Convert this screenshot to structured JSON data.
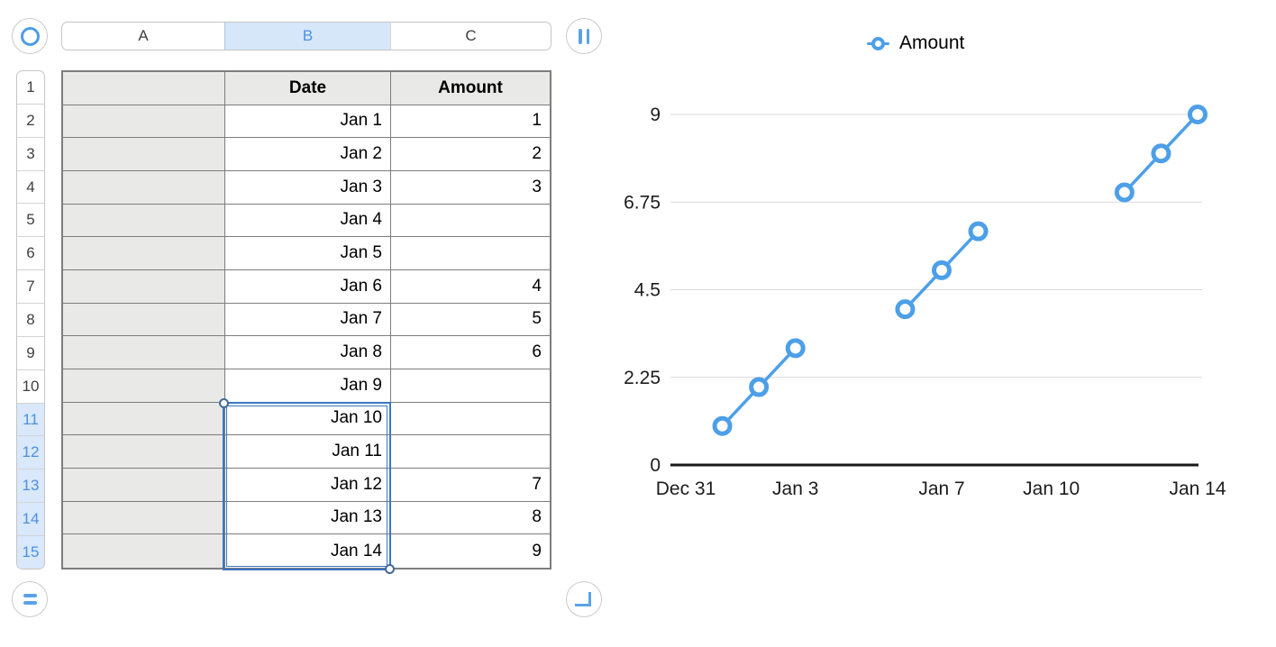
{
  "app": {
    "name": "Numbers-style spreadsheet canvas"
  },
  "spreadsheet": {
    "column_letters": [
      "A",
      "B",
      "C"
    ],
    "selected_column_letter": "B",
    "row_numbers": [
      "1",
      "2",
      "3",
      "4",
      "5",
      "6",
      "7",
      "8",
      "9",
      "10",
      "11",
      "12",
      "13",
      "14",
      "15"
    ],
    "selected_row_numbers": [
      "11",
      "12",
      "13",
      "14",
      "15"
    ],
    "header_row": {
      "a": "",
      "date": "Date",
      "amount": "Amount"
    },
    "rows": [
      {
        "row": "2",
        "date": "Jan 1",
        "amount": "1"
      },
      {
        "row": "3",
        "date": "Jan 2",
        "amount": "2"
      },
      {
        "row": "4",
        "date": "Jan 3",
        "amount": "3"
      },
      {
        "row": "5",
        "date": "Jan 4",
        "amount": ""
      },
      {
        "row": "6",
        "date": "Jan 5",
        "amount": ""
      },
      {
        "row": "7",
        "date": "Jan 6",
        "amount": "4"
      },
      {
        "row": "8",
        "date": "Jan 7",
        "amount": "5"
      },
      {
        "row": "9",
        "date": "Jan 8",
        "amount": "6"
      },
      {
        "row": "10",
        "date": "Jan 9",
        "amount": ""
      },
      {
        "row": "11",
        "date": "Jan 10",
        "amount": ""
      },
      {
        "row": "12",
        "date": "Jan 11",
        "amount": ""
      },
      {
        "row": "13",
        "date": "Jan 12",
        "amount": "7"
      },
      {
        "row": "14",
        "date": "Jan 13",
        "amount": "8"
      },
      {
        "row": "15",
        "date": "Jan 14",
        "amount": "9"
      }
    ],
    "corner_controls": {
      "select_all": "ring-icon",
      "column_handle": "double-vertical-bars-icon",
      "row_handle": "double-horizontal-bars-icon",
      "resize_handle": "corner-bracket-icon"
    },
    "colors": {
      "selection_border": "#3b76c5",
      "selection_handle_stroke": "#44699c",
      "highlight_bg": "#d9e8fa",
      "highlight_text": "#4a90e2",
      "header_cell_bg": "#e9e9e7",
      "grid_border": "#7d7d7d",
      "control_glyph_blue": "#5aa2e8"
    }
  },
  "chart_data": {
    "type": "line",
    "title": "",
    "xlabel": "",
    "ylabel": "",
    "xlim": [
      0,
      14
    ],
    "ylim": [
      0,
      9
    ],
    "grid": true,
    "legend": {
      "label": "Amount",
      "position": "top-center",
      "marker": "open-circle"
    },
    "x_ticks": [
      {
        "day": 0,
        "label": "Dec 31"
      },
      {
        "day": 3,
        "label": "Jan 3"
      },
      {
        "day": 7,
        "label": "Jan 7"
      },
      {
        "day": 10,
        "label": "Jan 10"
      },
      {
        "day": 14,
        "label": "Jan 14"
      }
    ],
    "y_ticks": [
      {
        "value": 0,
        "label": "0"
      },
      {
        "value": 2.25,
        "label": "2.25"
      },
      {
        "value": 4.5,
        "label": "4.5"
      },
      {
        "value": 6.75,
        "label": "6.75"
      },
      {
        "value": 9,
        "label": "9"
      }
    ],
    "series": [
      {
        "name": "Amount",
        "color": "#4d9fe8",
        "marker": "open-circle",
        "points": [
          {
            "date": "Jan 1",
            "day": 1,
            "value": 1
          },
          {
            "date": "Jan 2",
            "day": 2,
            "value": 2
          },
          {
            "date": "Jan 3",
            "day": 3,
            "value": 3
          },
          {
            "date": "Jan 6",
            "day": 6,
            "value": 4
          },
          {
            "date": "Jan 7",
            "day": 7,
            "value": 5
          },
          {
            "date": "Jan 8",
            "day": 8,
            "value": 6
          },
          {
            "date": "Jan 12",
            "day": 12,
            "value": 7
          },
          {
            "date": "Jan 13",
            "day": 13,
            "value": 8
          },
          {
            "date": "Jan 14",
            "day": 14,
            "value": 9
          }
        ],
        "segments": [
          [
            [
              1,
              1
            ],
            [
              2,
              2
            ],
            [
              3,
              3
            ]
          ],
          [
            [
              6,
              4
            ],
            [
              7,
              5
            ],
            [
              8,
              6
            ]
          ],
          [
            [
              12,
              7
            ],
            [
              13,
              8
            ],
            [
              14,
              9
            ]
          ]
        ]
      }
    ],
    "colors": {
      "gridline": "#d9d9d9",
      "axis": "#1a1a1a",
      "tick_text": "#1c1c1c"
    }
  }
}
